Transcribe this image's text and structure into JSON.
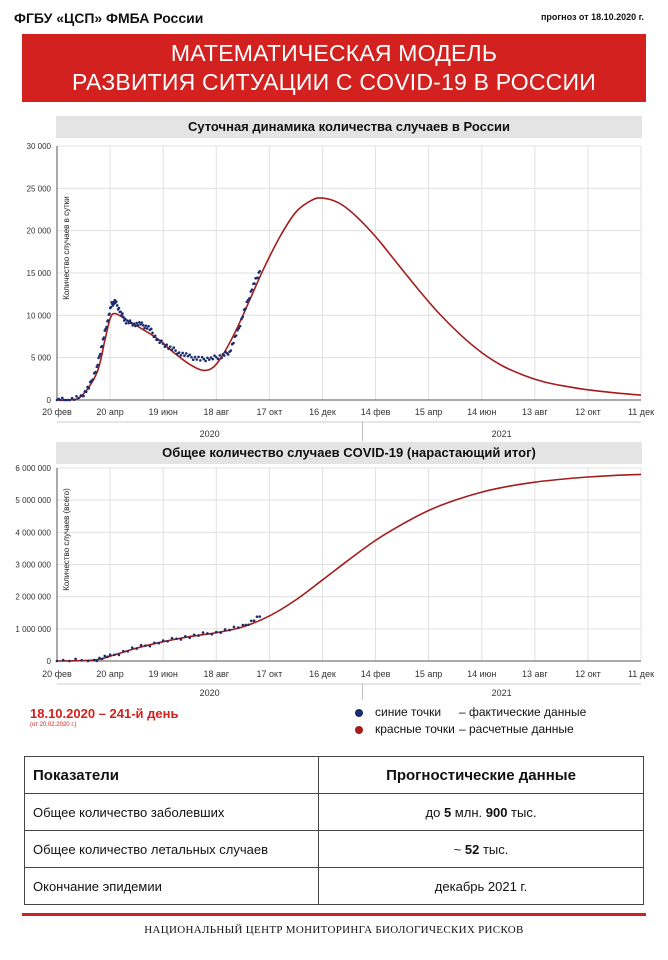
{
  "header": {
    "org": "ФГБУ «ЦСП» ФМБА России",
    "forecast_date": "прогноз от 18.10.2020 г."
  },
  "banner": {
    "line1": "МАТЕМАТИЧЕСКАЯ МОДЕЛЬ",
    "line2": "РАЗВИТИЯ СИТУАЦИИ С COVID-19 В РОССИИ"
  },
  "chart_data": [
    {
      "type": "line",
      "title": "Суточная динамика количества случаев в России",
      "ylabel": "Количество случаев в сутки",
      "ylim": [
        0,
        30000
      ],
      "yticks": [
        0,
        5000,
        10000,
        15000,
        20000,
        25000,
        30000
      ],
      "ytick_labels": [
        "0",
        "5 000",
        "10 000",
        "15 000",
        "20 000",
        "25 000",
        "30 000"
      ],
      "xticks": [
        "20 фев",
        "20 апр",
        "19 июн",
        "18 авг",
        "17 окт",
        "16 дек",
        "14 фев",
        "15 апр",
        "14 июн",
        "13 авг",
        "12 окт",
        "11 дек"
      ],
      "year_labels": [
        "2020",
        "2021"
      ],
      "series": [
        {
          "name": "расчетные данные",
          "color": "#a31d1d",
          "style": "line",
          "points": [
            [
              0,
              0
            ],
            [
              0.2,
              10
            ],
            [
              0.45,
              400
            ],
            [
              0.75,
              3200
            ],
            [
              0.9,
              7000
            ],
            [
              1.0,
              9600
            ],
            [
              1.1,
              10200
            ],
            [
              1.35,
              9300
            ],
            [
              1.6,
              8400
            ],
            [
              1.9,
              7200
            ],
            [
              2.2,
              5600
            ],
            [
              2.5,
              4200
            ],
            [
              2.75,
              3500
            ],
            [
              2.95,
              3900
            ],
            [
              3.15,
              5600
            ],
            [
              3.4,
              8600
            ],
            [
              3.65,
              12100
            ],
            [
              3.9,
              15600
            ],
            [
              4.2,
              19300
            ],
            [
              4.5,
              22200
            ],
            [
              4.8,
              23600
            ],
            [
              5.0,
              23850
            ],
            [
              5.3,
              23300
            ],
            [
              5.6,
              21900
            ],
            [
              6.0,
              19300
            ],
            [
              6.4,
              16200
            ],
            [
              6.8,
              13100
            ],
            [
              7.2,
              10200
            ],
            [
              7.6,
              7700
            ],
            [
              8.0,
              5600
            ],
            [
              8.4,
              4000
            ],
            [
              8.8,
              2900
            ],
            [
              9.2,
              2100
            ],
            [
              9.6,
              1600
            ],
            [
              10.0,
              1200
            ],
            [
              10.5,
              850
            ],
            [
              11.0,
              580
            ]
          ]
        },
        {
          "name": "фактические данные",
          "color": "#1a2b6e",
          "style": "dots",
          "points": [
            [
              0,
              0
            ],
            [
              0.2,
              0
            ],
            [
              0.45,
              300
            ],
            [
              0.6,
              1500
            ],
            [
              0.75,
              3800
            ],
            [
              0.85,
              6600
            ],
            [
              0.95,
              9300
            ],
            [
              1.03,
              11300
            ],
            [
              1.1,
              11600
            ],
            [
              1.2,
              10300
            ],
            [
              1.3,
              9300
            ],
            [
              1.45,
              9000
            ],
            [
              1.6,
              8900
            ],
            [
              1.75,
              8400
            ],
            [
              1.9,
              7000
            ],
            [
              2.1,
              6300
            ],
            [
              2.3,
              5600
            ],
            [
              2.5,
              5100
            ],
            [
              2.7,
              4800
            ],
            [
              2.9,
              4900
            ],
            [
              3.1,
              5200
            ],
            [
              3.25,
              5700
            ],
            [
              3.4,
              8000
            ],
            [
              3.55,
              10900
            ],
            [
              3.7,
              13600
            ],
            [
              3.82,
              15200
            ]
          ]
        }
      ]
    },
    {
      "type": "line",
      "title": "Общее количество случаев COVID-19 (нарастающий итог)",
      "ylabel": "Количество случаев (всего)",
      "ylim": [
        0,
        6000000
      ],
      "yticks": [
        0,
        1000000,
        2000000,
        3000000,
        4000000,
        5000000,
        6000000
      ],
      "ytick_labels": [
        "0",
        "1 000 000",
        "2 000 000",
        "3 000 000",
        "4 000 000",
        "5 000 000",
        "6 000 000"
      ],
      "xticks": [
        "20 фев",
        "20 апр",
        "19 июн",
        "18 авг",
        "17 окт",
        "16 дек",
        "14 фев",
        "15 апр",
        "14 июн",
        "13 авг",
        "12 окт",
        "11 дек"
      ],
      "year_labels": [
        "2020",
        "2021"
      ],
      "series": [
        {
          "name": "расчетные данные",
          "color": "#a31d1d",
          "style": "line",
          "points": [
            [
              0,
              0
            ],
            [
              0.7,
              30000
            ],
            [
              1.0,
              150000
            ],
            [
              1.5,
              400000
            ],
            [
              2.0,
              600000
            ],
            [
              2.5,
              760000
            ],
            [
              3.0,
              880000
            ],
            [
              3.5,
              1060000
            ],
            [
              4.0,
              1400000
            ],
            [
              4.5,
              1900000
            ],
            [
              5.0,
              2520000
            ],
            [
              5.5,
              3150000
            ],
            [
              6.0,
              3750000
            ],
            [
              6.5,
              4250000
            ],
            [
              7.0,
              4680000
            ],
            [
              7.5,
              5000000
            ],
            [
              8.0,
              5250000
            ],
            [
              8.5,
              5430000
            ],
            [
              9.0,
              5560000
            ],
            [
              9.5,
              5650000
            ],
            [
              10.0,
              5720000
            ],
            [
              10.5,
              5770000
            ],
            [
              11.0,
              5800000
            ]
          ]
        },
        {
          "name": "фактические данные",
          "color": "#1a2b6e",
          "style": "dots",
          "points": [
            [
              0,
              0
            ],
            [
              0.7,
              30000
            ],
            [
              1.0,
              150000
            ],
            [
              1.5,
              410000
            ],
            [
              2.0,
              610000
            ],
            [
              2.5,
              770000
            ],
            [
              3.0,
              900000
            ],
            [
              3.5,
              1070000
            ],
            [
              3.82,
              1380000
            ]
          ]
        }
      ]
    }
  ],
  "legend": {
    "blue_label": "синие точки",
    "blue_desc": "– фактические данные",
    "red_label": "красные точки",
    "red_desc": "– расчетные данные",
    "blue_color": "#1a2b6e",
    "red_color": "#a31d1d"
  },
  "day_info": {
    "main": "18.10.2020 – 241-й день",
    "sub": "(от 20.02.2020 г.)"
  },
  "table": {
    "headers": [
      "Показатели",
      "Прогностические данные"
    ],
    "rows": [
      {
        "label": "Общее количество заболевших",
        "value": "до 5 млн. 900 тыс."
      },
      {
        "label": "Общее количество летальных случаев",
        "value": "~ 52 тыс."
      },
      {
        "label": "Окончание эпидемии",
        "value": "декабрь 2021 г."
      }
    ]
  },
  "footer": "НАЦИОНАЛЬНЫЙ ЦЕНТР МОНИТОРИНГА БИОЛОГИЧЕСКИХ РИСКОВ"
}
